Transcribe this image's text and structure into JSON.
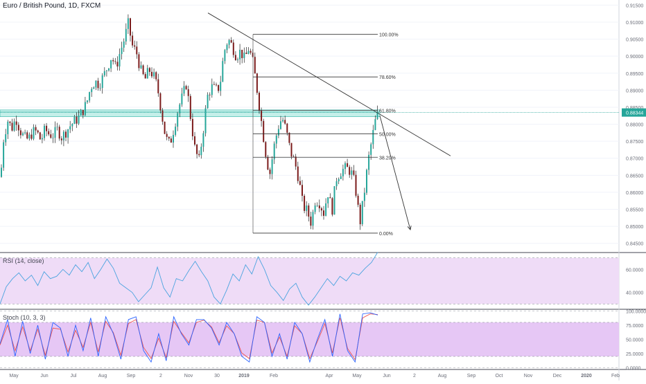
{
  "header": {
    "symbol_title": "Euro / British Pound, 1D, FXCM"
  },
  "colors": {
    "bull": "#26a69a",
    "bear": "#7b1b1b",
    "wick": "#222222",
    "rsi_line": "#4aa3df",
    "rsi_band": "#efdcf7",
    "stoch_k": "#2962ff",
    "stoch_d": "#ef5350",
    "stoch_band": "#e6c7f5",
    "zone_fill": "#7fdccf",
    "price_tag": "#26a69a",
    "grid": "#f0f3fa",
    "axis_text": "#6a6d78"
  },
  "chart_data": {
    "type": "candlestick",
    "x_ticks": [
      "May",
      "Jun",
      "Jul",
      "Aug",
      "Sep",
      "2",
      "Nov",
      "30",
      "2019",
      "Feb",
      "Apr",
      "May",
      "Jun",
      "2",
      "Aug",
      "Sep",
      "Oct",
      "Nov",
      "Dec",
      "2020",
      "Feb"
    ],
    "price_axis": {
      "ticks": [
        "0.91500",
        "0.91000",
        "0.90500",
        "0.90000",
        "0.89500",
        "0.89000",
        "0.88500",
        "0.88000",
        "0.87500",
        "0.87000",
        "0.86500",
        "0.86000",
        "0.85500",
        "0.85000",
        "0.84500"
      ],
      "range": [
        0.8425,
        0.9165
      ]
    },
    "current_price": "0.88344",
    "price_path": [
      [
        0,
        0.8645
      ],
      [
        4,
        0.8755
      ],
      [
        10,
        0.8812
      ],
      [
        16,
        0.8788
      ],
      [
        22,
        0.8818
      ],
      [
        28,
        0.8782
      ],
      [
        34,
        0.876
      ],
      [
        40,
        0.8755
      ],
      [
        46,
        0.8778
      ],
      [
        52,
        0.8778
      ],
      [
        58,
        0.8752
      ],
      [
        64,
        0.8785
      ],
      [
        70,
        0.877
      ],
      [
        76,
        0.8768
      ],
      [
        82,
        0.8785
      ],
      [
        88,
        0.8762
      ],
      [
        94,
        0.8778
      ],
      [
        100,
        0.8795
      ],
      [
        106,
        0.8808
      ],
      [
        112,
        0.8818
      ],
      [
        118,
        0.8838
      ],
      [
        124,
        0.8862
      ],
      [
        130,
        0.891
      ],
      [
        136,
        0.8925
      ],
      [
        142,
        0.8918
      ],
      [
        148,
        0.894
      ],
      [
        154,
        0.8968
      ],
      [
        160,
        0.9
      ],
      [
        166,
        0.8965
      ],
      [
        172,
        0.901
      ],
      [
        178,
        0.9048
      ],
      [
        184,
        0.9095
      ],
      [
        190,
        0.903
      ],
      [
        196,
        0.901
      ],
      [
        202,
        0.8958
      ],
      [
        208,
        0.893
      ],
      [
        214,
        0.896
      ],
      [
        220,
        0.8945
      ],
      [
        226,
        0.891
      ],
      [
        232,
        0.8835
      ],
      [
        238,
        0.876
      ],
      [
        244,
        0.874
      ],
      [
        250,
        0.879
      ],
      [
        256,
        0.8845
      ],
      [
        262,
        0.888
      ],
      [
        268,
        0.892
      ],
      [
        274,
        0.882
      ],
      [
        280,
        0.873
      ],
      [
        286,
        0.869
      ],
      [
        292,
        0.878
      ],
      [
        298,
        0.888
      ],
      [
        304,
        0.891
      ],
      [
        310,
        0.89
      ],
      [
        316,
        0.891
      ],
      [
        322,
        0.901
      ],
      [
        328,
        0.905
      ],
      [
        334,
        0.903
      ],
      [
        340,
        0.9
      ],
      [
        346,
        0.9015
      ],
      [
        352,
        0.899
      ],
      [
        358,
        0.9025
      ],
      [
        364,
        0.898
      ],
      [
        370,
        0.89
      ],
      [
        376,
        0.881
      ],
      [
        382,
        0.872
      ],
      [
        388,
        0.865
      ],
      [
        394,
        0.873
      ],
      [
        400,
        0.879
      ],
      [
        406,
        0.882
      ],
      [
        412,
        0.878
      ],
      [
        418,
        0.872
      ],
      [
        424,
        0.869
      ],
      [
        430,
        0.864
      ],
      [
        436,
        0.856
      ],
      [
        442,
        0.8545
      ],
      [
        448,
        0.851
      ],
      [
        454,
        0.858
      ],
      [
        460,
        0.857
      ],
      [
        466,
        0.854
      ],
      [
        472,
        0.86
      ],
      [
        478,
        0.8545
      ],
      [
        484,
        0.864
      ],
      [
        490,
        0.866
      ],
      [
        496,
        0.867
      ],
      [
        502,
        0.8668
      ],
      [
        508,
        0.865
      ],
      [
        514,
        0.8585
      ],
      [
        518,
        0.8505
      ],
      [
        524,
        0.859
      ],
      [
        530,
        0.869
      ],
      [
        536,
        0.876
      ],
      [
        541,
        0.8815
      ],
      [
        545,
        0.8834
      ]
    ],
    "fibonacci": {
      "levels": [
        {
          "label": "100.00%",
          "price": 0.9064
        },
        {
          "label": "78.60%",
          "price": 0.8939
        },
        {
          "label": "61.80%",
          "price": 0.8841
        },
        {
          "label": "50.00%",
          "price": 0.8772
        },
        {
          "label": "38.20%",
          "price": 0.8703
        },
        {
          "label": "0.00%",
          "price": 0.848
        }
      ]
    },
    "resistance_zone": {
      "from": 0.8822,
      "to": 0.8842
    },
    "trendline": {
      "from": [
        300,
        0.9127
      ],
      "to": [
        650,
        0.8707
      ]
    },
    "projection_arrow": {
      "from": [
        548,
        0.8825
      ],
      "to": [
        592,
        0.849
      ]
    },
    "rsi": {
      "label": "RSI (14, close)",
      "ticks": [
        "60.0000",
        "40.0000"
      ],
      "range": [
        26,
        74
      ],
      "band": [
        30,
        70
      ],
      "values": [
        30,
        45,
        52,
        57,
        50,
        55,
        46,
        58,
        52,
        54,
        60,
        55,
        64,
        58,
        66,
        52,
        60,
        69,
        61,
        48,
        44,
        40,
        32,
        38,
        44,
        62,
        44,
        36,
        52,
        50,
        59,
        67,
        58,
        50,
        36,
        30,
        42,
        56,
        50,
        64,
        56,
        71,
        60,
        46,
        40,
        33,
        43,
        48,
        36,
        29,
        36,
        44,
        52,
        46,
        54,
        50,
        57,
        55,
        61,
        66,
        75
      ]
    },
    "stoch": {
      "label": "Stoch (10, 3, 3)",
      "ticks": [
        "100.0000",
        "75.0000",
        "50.0000",
        "25.0000",
        "0.0000"
      ],
      "range": [
        -2,
        102
      ],
      "band": [
        20,
        80
      ],
      "k": [
        42,
        85,
        20,
        82,
        25,
        75,
        15,
        80,
        70,
        20,
        75,
        30,
        88,
        20,
        90,
        60,
        15,
        85,
        90,
        30,
        10,
        60,
        12,
        90,
        60,
        40,
        85,
        85,
        70,
        40,
        80,
        60,
        20,
        10,
        90,
        80,
        20,
        60,
        15,
        80,
        60,
        10,
        50,
        85,
        20,
        95,
        30,
        10,
        95,
        97,
        93
      ],
      "d": [
        40,
        75,
        30,
        72,
        30,
        68,
        22,
        70,
        68,
        28,
        66,
        36,
        80,
        28,
        82,
        62,
        22,
        78,
        85,
        36,
        16,
        52,
        18,
        82,
        62,
        44,
        80,
        84,
        72,
        44,
        74,
        60,
        26,
        16,
        84,
        80,
        26,
        54,
        20,
        74,
        60,
        16,
        46,
        78,
        26,
        88,
        34,
        14,
        88,
        95,
        94
      ]
    }
  }
}
